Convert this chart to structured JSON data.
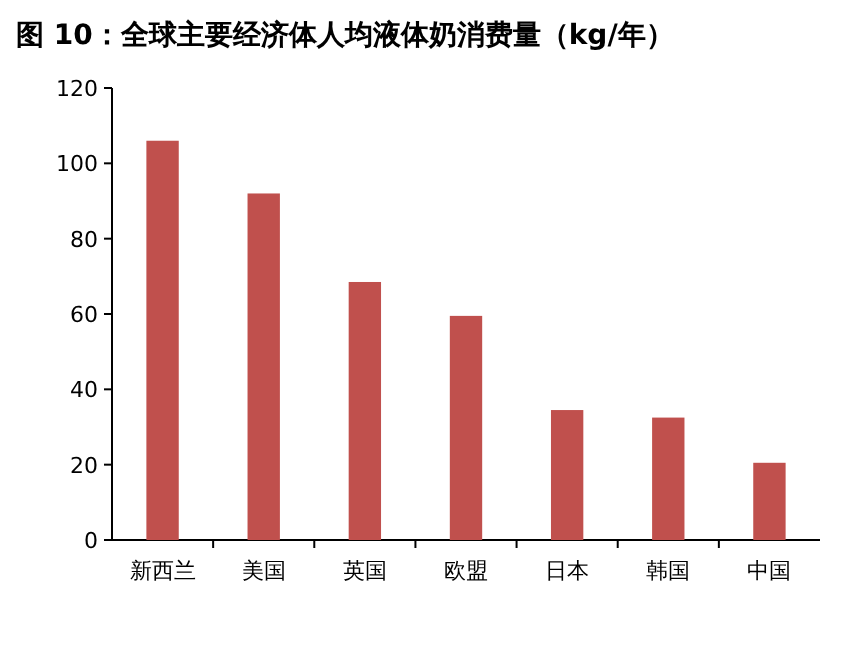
{
  "chart_data": {
    "type": "bar",
    "title": "图 10：全球主要经济体人均液体奶消费量（kg/年）",
    "categories": [
      "新西兰",
      "美国",
      "英国",
      "欧盟",
      "日本",
      "韩国",
      "中国"
    ],
    "values": [
      106,
      92,
      68.5,
      59.5,
      34.5,
      32.5,
      20.5
    ],
    "color": "#c0504d",
    "ylim": [
      0,
      120
    ],
    "yticks": [
      0,
      20,
      40,
      60,
      80,
      100,
      120
    ]
  }
}
